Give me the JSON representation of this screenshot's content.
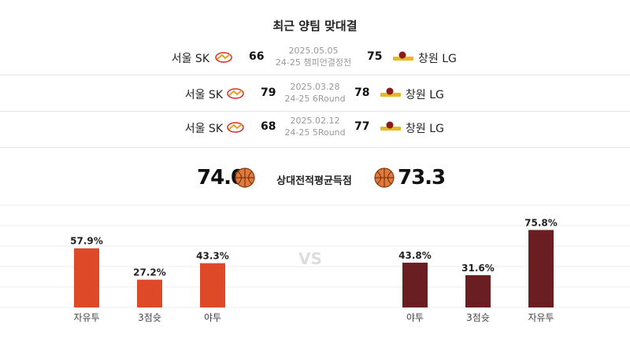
{
  "title": "최근 양팀 맞대결",
  "games": [
    {
      "home": "서울 SK",
      "home_score": "66",
      "date": "2025.05.05",
      "round": "24-25 챔피언결정전",
      "away_score": "75",
      "away": "창원 LG"
    },
    {
      "home": "서울 SK",
      "home_score": "79",
      "date": "2025.03.28",
      "round": "24-25 6Round",
      "away_score": "78",
      "away": "창원 LG"
    },
    {
      "home": "서울 SK",
      "home_score": "68",
      "date": "2025.02.12",
      "round": "24-25 5Round",
      "away_score": "77",
      "away": "창원 LG"
    }
  ],
  "average": {
    "label": "상대전적평균득점",
    "home": "74.0",
    "away": "73.3"
  },
  "vs_text": "VS",
  "colors": {
    "home_bar": "#de4a28",
    "away_bar": "#6b1e22",
    "grid": "#ececec"
  },
  "chart_data": {
    "type": "bar",
    "ylim": [
      0,
      100
    ],
    "grid": true,
    "groups": [
      {
        "side": "home",
        "categories": [
          "자유투",
          "3점슛",
          "야투"
        ],
        "values": [
          57.9,
          27.2,
          43.3
        ],
        "labels": [
          "57.9%",
          "27.2%",
          "43.3%"
        ]
      },
      {
        "side": "away",
        "categories": [
          "야투",
          "3점슛",
          "자유투"
        ],
        "values": [
          43.8,
          31.6,
          75.8
        ],
        "labels": [
          "43.8%",
          "31.6%",
          "75.8%"
        ]
      }
    ]
  }
}
